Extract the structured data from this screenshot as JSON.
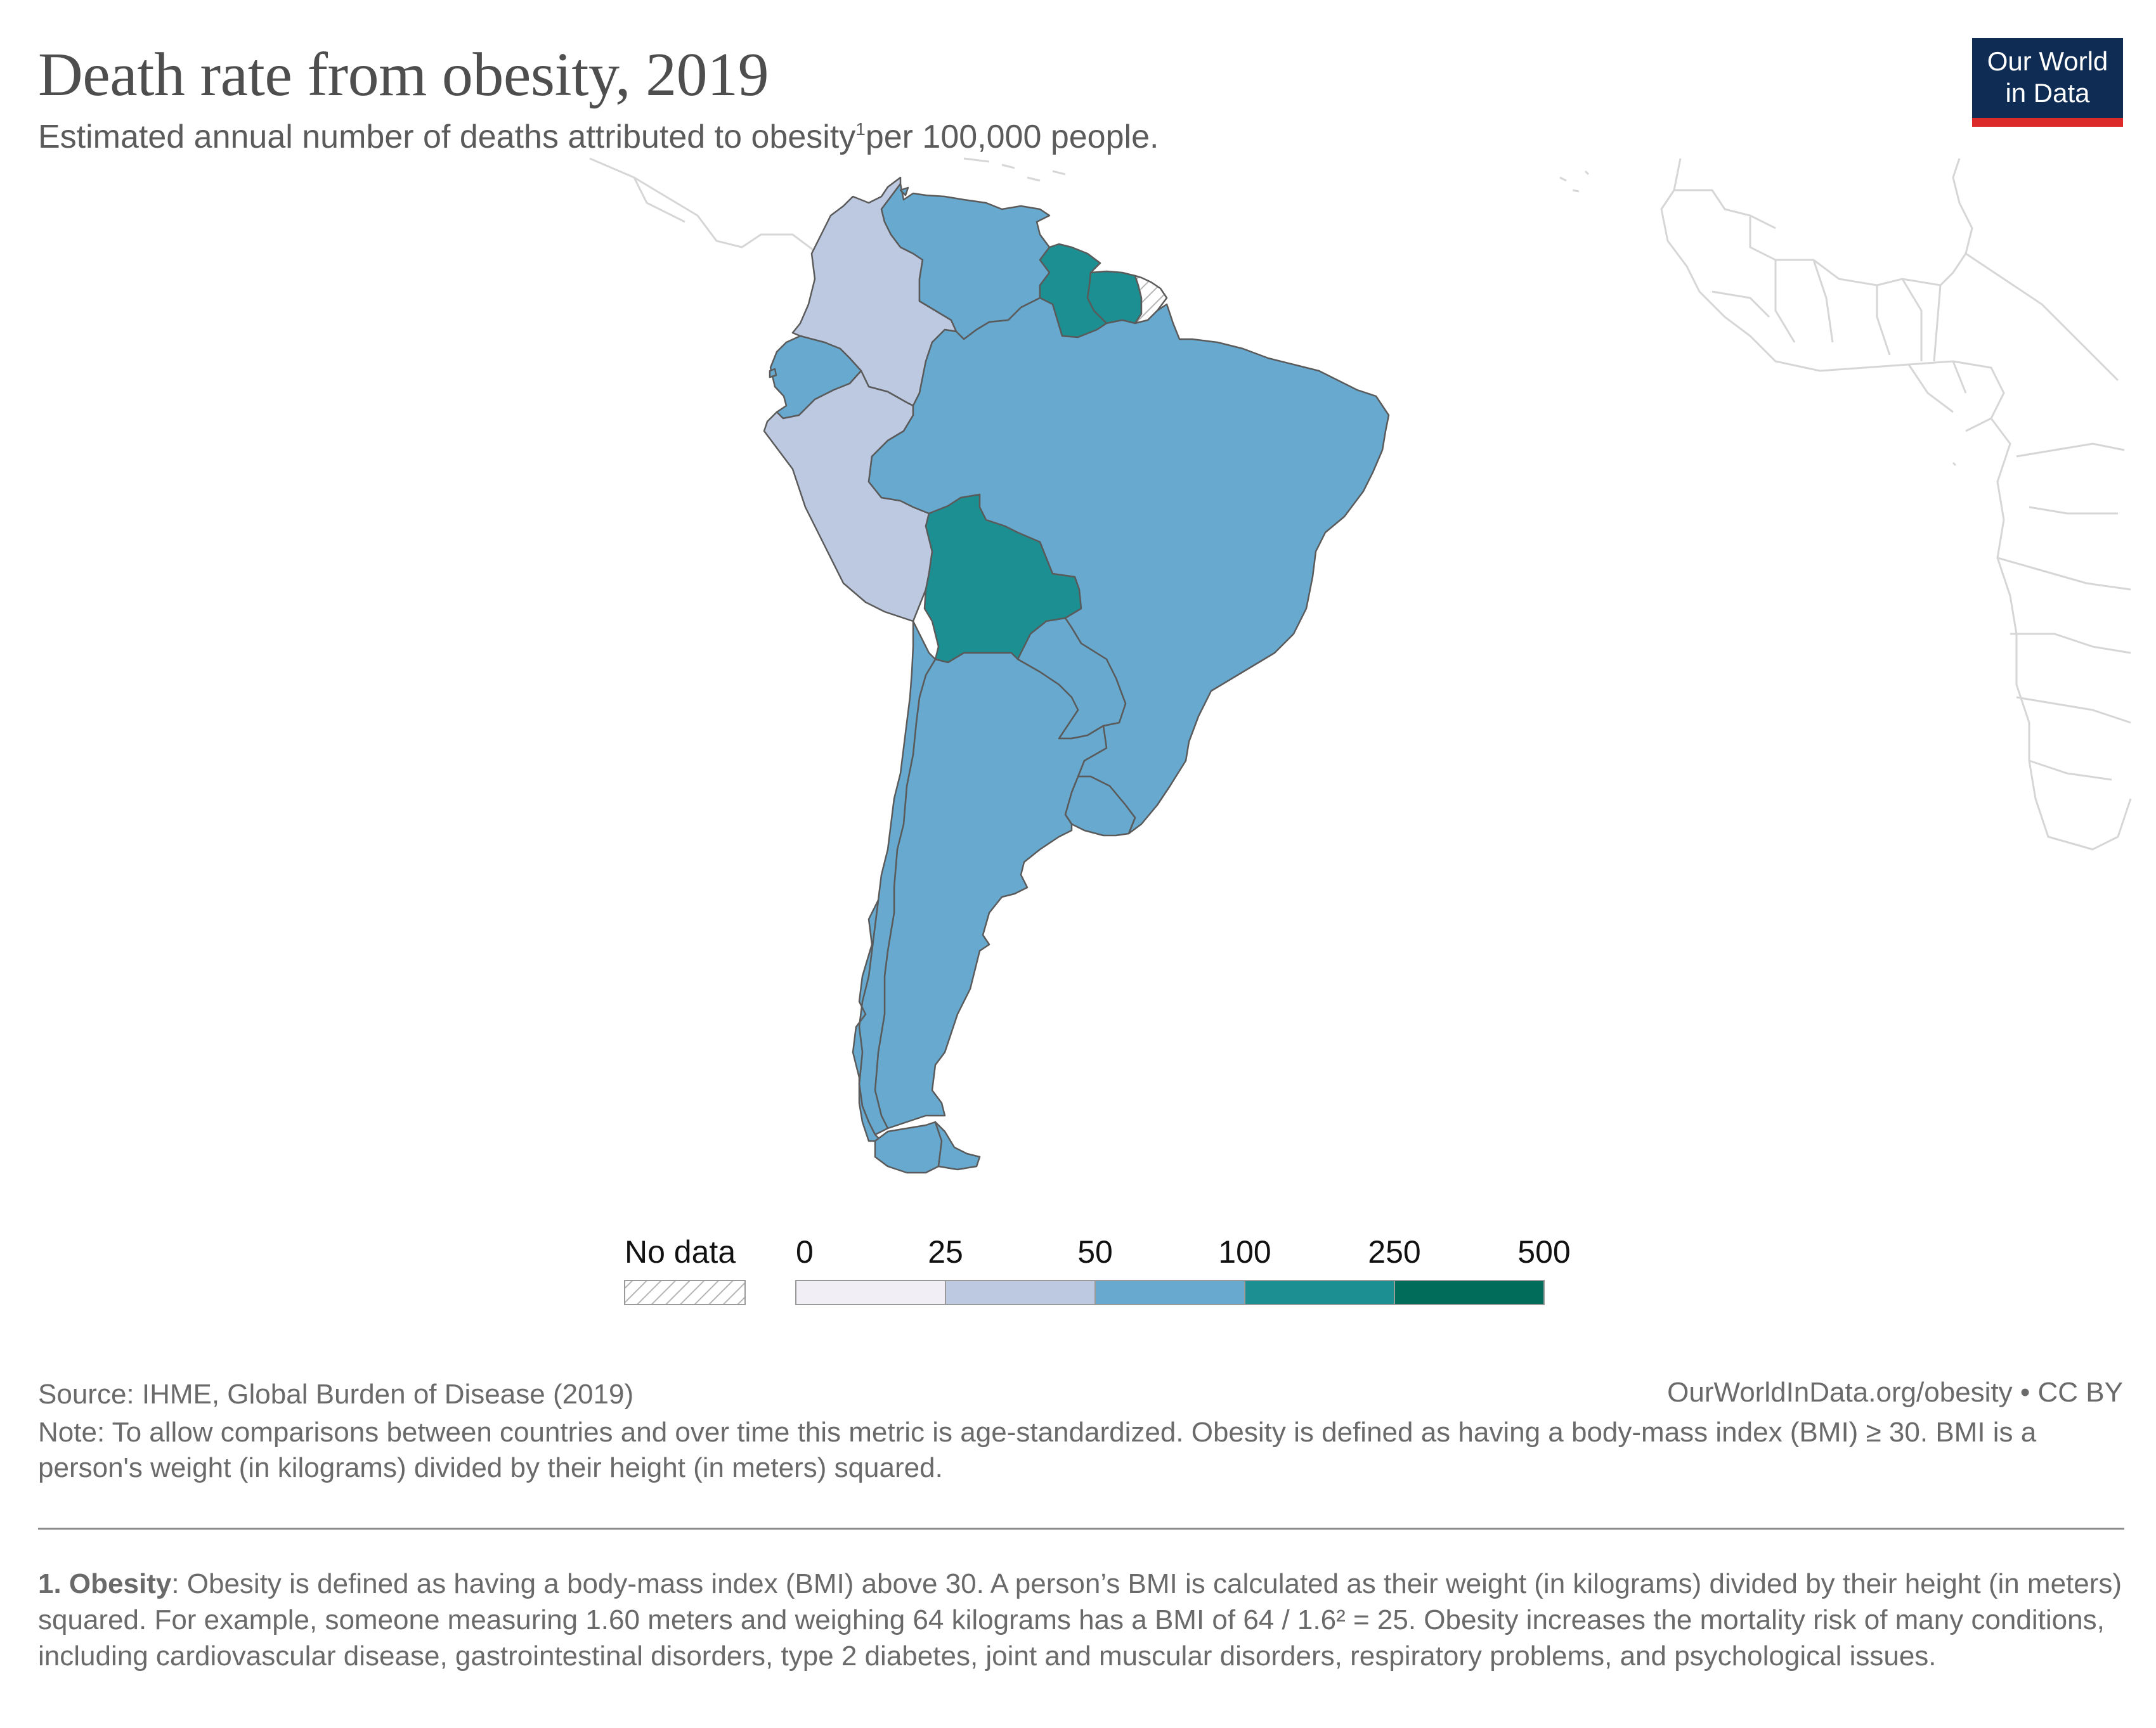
{
  "header": {
    "title": "Death rate from obesity, 2019",
    "subtitle_before": "Estimated annual number of deaths attributed to obesity",
    "subtitle_sup": "1",
    "subtitle_after": "per 100,000 people."
  },
  "logo": {
    "line1": "Our World",
    "line2": "in Data",
    "bg_color": "#0f2c55",
    "accent_color": "#dc2a2a"
  },
  "legend": {
    "no_data_label": "No data",
    "ticks": [
      "0",
      "25",
      "50",
      "100",
      "250",
      "500"
    ],
    "bins": [
      {
        "min": 0,
        "max": 25,
        "color": "#f1eef6"
      },
      {
        "min": 25,
        "max": 50,
        "color": "#bdc9e1"
      },
      {
        "min": 50,
        "max": 100,
        "color": "#67a9cf"
      },
      {
        "min": 100,
        "max": 250,
        "color": "#1c8f93"
      },
      {
        "min": 250,
        "max": 500,
        "color": "#016c59"
      }
    ]
  },
  "map": {
    "region": "South America",
    "countries": [
      {
        "name": "Colombia",
        "bin": "25-50"
      },
      {
        "name": "Peru",
        "bin": "25-50"
      },
      {
        "name": "Venezuela",
        "bin": "50-100"
      },
      {
        "name": "Ecuador",
        "bin": "50-100"
      },
      {
        "name": "Brazil",
        "bin": "50-100"
      },
      {
        "name": "Argentina",
        "bin": "50-100"
      },
      {
        "name": "Chile",
        "bin": "50-100"
      },
      {
        "name": "Paraguay",
        "bin": "50-100"
      },
      {
        "name": "Uruguay",
        "bin": "50-100"
      },
      {
        "name": "Bolivia",
        "bin": "100-250"
      },
      {
        "name": "Guyana",
        "bin": "100-250"
      },
      {
        "name": "Suriname",
        "bin": "100-250"
      },
      {
        "name": "French Guiana",
        "bin": "No data"
      }
    ]
  },
  "footer": {
    "source": "Source: IHME, Global Burden of Disease (2019)",
    "url": "OurWorldInData.org/obesity • CC BY",
    "note": "Note: To allow comparisons between countries and over time this metric is age-standardized. Obesity is defined as having a body-mass index (BMI) ≥ 30. BMI is a person's weight (in kilograms) divided by their height (in meters) squared.",
    "footnote_label": "1. Obesity",
    "footnote_text": ": Obesity is defined as having a body-mass index (BMI) above 30. A person’s BMI is calculated as their weight (in kilograms) divided by their height (in meters) squared. For example, someone measuring 1.60 meters and weighing 64 kilograms has a BMI of 64 / 1.6² = 25. Obesity increases the mortality risk of many conditions, including cardiovascular disease, gastrointestinal disorders, type 2 diabetes, joint and muscular disorders, respiratory problems, and psychological issues."
  }
}
